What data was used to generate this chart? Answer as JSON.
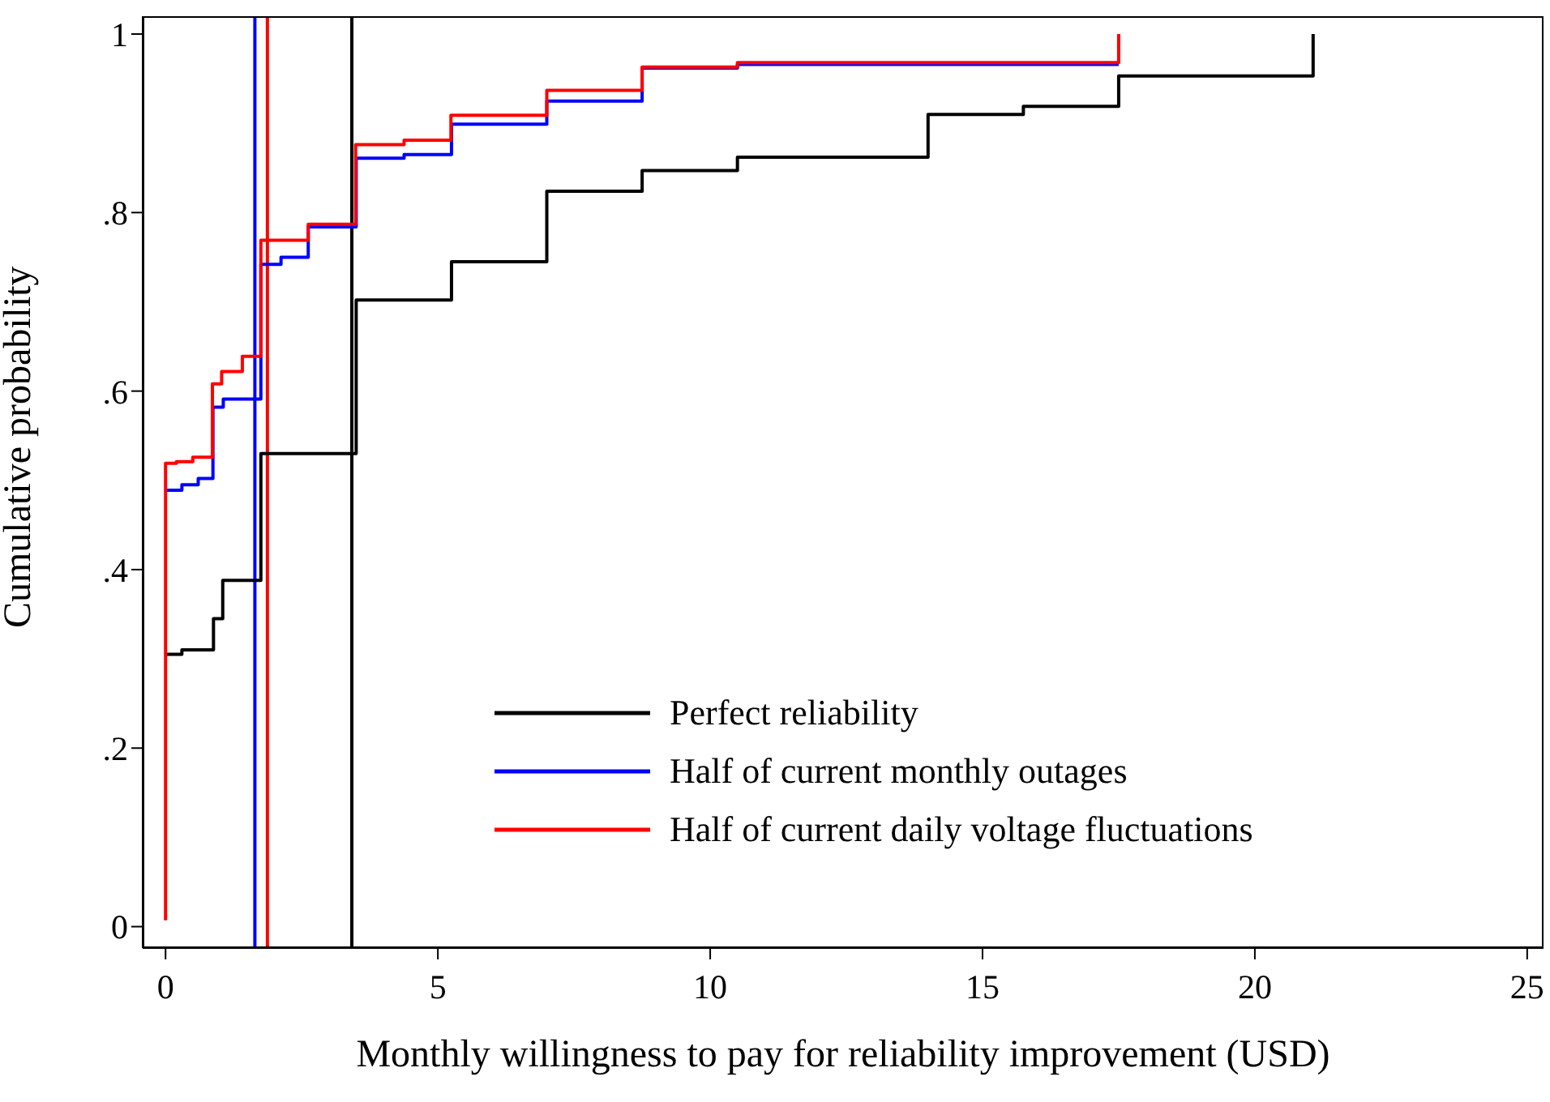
{
  "chart_data": {
    "type": "step",
    "xlabel": "Monthly willingness to pay for reliability improvement (USD)",
    "ylabel": "Cumulative probability",
    "xlim": [
      -0.42,
      25.3
    ],
    "xticks": [
      0,
      5,
      10,
      15,
      20,
      25
    ],
    "ylim": [
      -0.024,
      1.02
    ],
    "yticks": [
      {
        "value": 0,
        "label": "0"
      },
      {
        "value": 0.2,
        "label": ".2"
      },
      {
        "value": 0.4,
        "label": ".4"
      },
      {
        "value": 0.6,
        "label": ".6"
      },
      {
        "value": 0.8,
        "label": ".8"
      },
      {
        "value": 1,
        "label": "1"
      }
    ],
    "grid": false,
    "legend": "bottom right",
    "marker": "none",
    "line_style": "solid",
    "series": [
      {
        "name": "Perfect reliability",
        "color": "#000000",
        "x": [
          0,
          0.3,
          0.88,
          1.05,
          1.75,
          3.5,
          5.25,
          7.0,
          8.75,
          10.5,
          14.0,
          15.75,
          17.5,
          21.07
        ],
        "values": [
          0.305,
          0.31,
          0.345,
          0.388,
          0.53,
          0.702,
          0.745,
          0.824,
          0.847,
          0.862,
          0.91,
          0.919,
          0.953,
          1.0
        ]
      },
      {
        "name": "Half of current monthly outages",
        "color": "#0000ff",
        "x": [
          0,
          0.3,
          0.6,
          0.87,
          1.06,
          1.75,
          2.12,
          2.62,
          3.5,
          4.38,
          5.25,
          7.0,
          8.75,
          10.5,
          17.5
        ],
        "values": [
          0.489,
          0.495,
          0.502,
          0.582,
          0.591,
          0.742,
          0.75,
          0.784,
          0.861,
          0.865,
          0.899,
          0.925,
          0.962,
          0.966,
          0.966
        ]
      },
      {
        "name": "Half of current daily voltage fluctuations",
        "color": "#ff0000",
        "x": [
          0,
          0,
          0.2,
          0.5,
          0.86,
          1.03,
          1.41,
          1.75,
          2.62,
          3.49,
          4.38,
          5.24,
          7.0,
          8.75,
          10.5,
          17.5
        ],
        "values": [
          0.007,
          0.519,
          0.521,
          0.526,
          0.608,
          0.622,
          0.639,
          0.769,
          0.787,
          0.876,
          0.881,
          0.909,
          0.937,
          0.963,
          0.968,
          1.0
        ]
      }
    ],
    "ref_lines": [
      {
        "axis": "x",
        "value": 1.64,
        "label": null,
        "color": "#0000ff"
      },
      {
        "axis": "x",
        "value": 1.87,
        "label": null,
        "color": "#ff0000"
      },
      {
        "axis": "x",
        "value": 3.42,
        "label": null,
        "color": "#000000"
      }
    ]
  }
}
